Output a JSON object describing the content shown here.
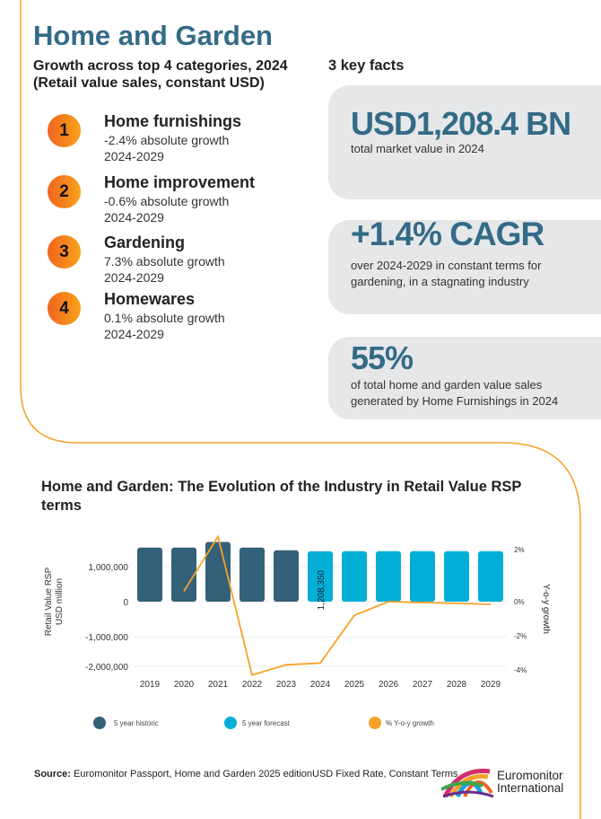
{
  "title": "Home and Garden",
  "subtitle_line1": "Growth across top 4 categories, 2024",
  "subtitle_line2": "(Retail value sales, constant USD)",
  "facts_title": "3 key facts",
  "categories": [
    {
      "rank": "1",
      "name": "Home furnishings",
      "growth": "-2.4% absolute growth",
      "period": "2024-2029"
    },
    {
      "rank": "2",
      "name": "Home improvement",
      "growth": "-0.6% absolute growth",
      "period": "2024-2029"
    },
    {
      "rank": "3",
      "name": "Gardening",
      "growth": "7.3% absolute growth",
      "period": "2024-2029"
    },
    {
      "rank": "4",
      "name": "Homewares",
      "growth": "0.1% absolute growth",
      "period": "2024-2029"
    }
  ],
  "facts": [
    {
      "big": "USD1,208.4 BN",
      "text": "total market value in 2024"
    },
    {
      "big": "+1.4% CAGR",
      "text": "over 2024-2029 in constant terms for gardening, in a stagnating industry"
    },
    {
      "big": "55%",
      "text": "of total home and garden value sales generated by Home Furnishings in 2024"
    }
  ],
  "colors": {
    "historic": "#336178",
    "forecast": "#03afd7",
    "growth": "#f7a128",
    "title": "#336b87",
    "frame": "#f7a128",
    "card": "#e6e7e9"
  },
  "chart_data": {
    "type": "bar+line",
    "title": "Home and Garden: The Evolution of the Industry in Retail Value RSP terms",
    "ylabel": "Retail Value RSP USD million",
    "y2label": "Y-o-y growth",
    "categories": [
      "2019",
      "2020",
      "2021",
      "2022",
      "2023",
      "2024",
      "2025",
      "2026",
      "2027",
      "2028",
      "2029"
    ],
    "yticks": [
      "1,000,000",
      "0",
      "-1,000,000",
      "-2,000,000"
    ],
    "y2ticks": [
      "2%",
      "0%",
      "-2%",
      "-4%"
    ],
    "ylim": [
      -2000000,
      1500000
    ],
    "y2lim": [
      -4,
      2.5
    ],
    "grid": true,
    "legend_position": "bottom",
    "series": [
      {
        "name": "5 year historic",
        "type": "bar",
        "values": [
          1290000,
          1290000,
          1450000,
          1290000,
          1210000,
          null,
          null,
          null,
          null,
          null,
          null
        ]
      },
      {
        "name": "5 year forecast",
        "type": "bar",
        "values": [
          null,
          null,
          null,
          null,
          null,
          1208350,
          1210000,
          1210000,
          1210000,
          1210000,
          1210000
        ]
      },
      {
        "name": "% Y-o-y growth",
        "type": "line",
        "values": [
          null,
          0.4,
          2.5,
          -4.3,
          -3.7,
          -3.6,
          -0.8,
          0.0,
          -0.05,
          -0.1,
          -0.15
        ]
      }
    ],
    "data_label": "1,208,350"
  },
  "source_label": "Source:",
  "source_text": " Euromonitor Passport, Home and Garden 2025 editionUSD Fixed Rate, Constant Terms",
  "logo_line1": "Euromonitor",
  "logo_line2": "International"
}
